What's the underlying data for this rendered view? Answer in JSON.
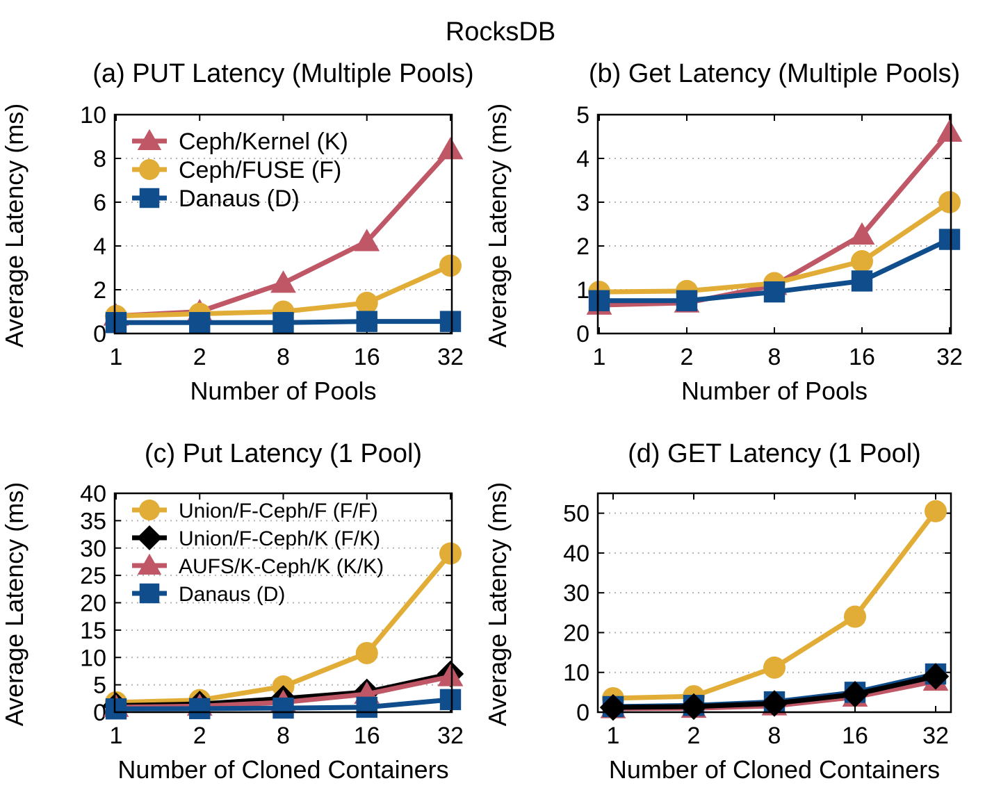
{
  "figure": {
    "title": "RocksDB"
  },
  "colors": {
    "kernel": "#c05766",
    "fuse": "#e2ad37",
    "danaus": "#0f4d8c",
    "fk": "#000000",
    "grid": "#b3b3b3"
  },
  "chart_data": [
    {
      "type": "line",
      "title": "(a) PUT Latency (Multiple Pools)",
      "xlabel": "Number of Pools",
      "ylabel": "Average Latency (ms)",
      "categories": [
        "1",
        "2",
        "8",
        "16",
        "32"
      ],
      "ylim": [
        0,
        10
      ],
      "yticks": [
        0,
        2,
        4,
        6,
        8,
        10
      ],
      "grid": "horizontal dotted",
      "legend": "top-left",
      "series": [
        {
          "name": "Ceph/Kernel (K)",
          "marker": "triangle",
          "color_key": "kernel",
          "values": [
            0.8,
            1.0,
            2.3,
            4.2,
            8.4
          ]
        },
        {
          "name": "Ceph/FUSE (F)",
          "marker": "circle",
          "color_key": "fuse",
          "values": [
            0.8,
            0.9,
            1.0,
            1.4,
            3.1
          ]
        },
        {
          "name": "Danaus (D)",
          "marker": "square",
          "color_key": "danaus",
          "values": [
            0.5,
            0.5,
            0.5,
            0.55,
            0.55
          ]
        }
      ]
    },
    {
      "type": "line",
      "title": "(b) Get Latency (Multiple Pools)",
      "xlabel": "Number of Pools",
      "ylabel": "Average Latency (ms)",
      "categories": [
        "1",
        "2",
        "8",
        "16",
        "32"
      ],
      "ylim": [
        0,
        5
      ],
      "yticks": [
        0,
        1,
        2,
        3,
        4,
        5
      ],
      "grid": "horizontal dotted",
      "legend": "none",
      "series": [
        {
          "name": "Ceph/Kernel (K)",
          "marker": "triangle",
          "color_key": "kernel",
          "values": [
            0.65,
            0.7,
            1.1,
            2.25,
            4.6
          ]
        },
        {
          "name": "Ceph/FUSE (F)",
          "marker": "circle",
          "color_key": "fuse",
          "values": [
            0.95,
            0.97,
            1.15,
            1.65,
            3.0
          ]
        },
        {
          "name": "Danaus (D)",
          "marker": "square",
          "color_key": "danaus",
          "values": [
            0.75,
            0.75,
            0.95,
            1.2,
            2.15
          ]
        }
      ]
    },
    {
      "type": "line",
      "title": "(c) Put Latency (1 Pool)",
      "xlabel": "Number of Cloned Containers",
      "ylabel": "Average Latency (ms)",
      "categories": [
        "1",
        "2",
        "8",
        "16",
        "32"
      ],
      "ylim": [
        0,
        40
      ],
      "yticks": [
        0,
        5,
        10,
        15,
        20,
        25,
        30,
        35,
        40
      ],
      "grid": "horizontal dotted",
      "legend": "top-left",
      "series": [
        {
          "name": "Union/F-Ceph/F (F/F)",
          "marker": "circle",
          "color_key": "fuse",
          "values": [
            1.8,
            2.2,
            4.7,
            10.8,
            29.0
          ]
        },
        {
          "name": "Union/F-Ceph/K (F/K)",
          "marker": "diamond",
          "color_key": "fk",
          "values": [
            1.2,
            1.5,
            2.5,
            3.7,
            7.0
          ]
        },
        {
          "name": "AUFS/K-Ceph/K (K/K)",
          "marker": "triangle",
          "color_key": "kernel",
          "values": [
            0.9,
            1.1,
            1.8,
            3.3,
            6.5
          ]
        },
        {
          "name": "Danaus (D)",
          "marker": "square",
          "color_key": "danaus",
          "values": [
            0.6,
            0.65,
            0.75,
            0.9,
            2.3
          ]
        }
      ]
    },
    {
      "type": "line",
      "title": "(d) GET Latency (1 Pool)",
      "xlabel": "Number of Cloned Containers",
      "ylabel": "Average Latency (ms)",
      "categories": [
        "1",
        "2",
        "8",
        "16",
        "32"
      ],
      "ylim": [
        0,
        55
      ],
      "yticks": [
        0,
        10,
        20,
        30,
        40,
        50
      ],
      "grid": "horizontal dotted",
      "legend": "none",
      "series": [
        {
          "name": "Union/F-Ceph/F (F/F)",
          "marker": "circle",
          "color_key": "fuse",
          "values": [
            3.5,
            4.0,
            11.2,
            24.0,
            50.5
          ]
        },
        {
          "name": "AUFS/K-Ceph/K (K/K)",
          "marker": "triangle",
          "color_key": "kernel",
          "values": [
            0.9,
            1.0,
            1.6,
            3.8,
            7.8
          ]
        },
        {
          "name": "Danaus (D)",
          "marker": "square",
          "color_key": "danaus",
          "values": [
            1.4,
            1.7,
            2.6,
            5.0,
            9.6
          ]
        },
        {
          "name": "Union/F-Ceph/K (F/K)",
          "marker": "diamond",
          "color_key": "fk",
          "values": [
            1.2,
            1.4,
            2.2,
            4.5,
            9.0
          ]
        }
      ]
    }
  ]
}
